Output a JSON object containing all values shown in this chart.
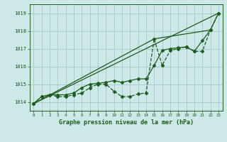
{
  "title": "Graphe pression niveau de la mer (hPa)",
  "background_color": "#cce8e8",
  "grid_color": "#aacccc",
  "line_color": "#1a5c1a",
  "xlim": [
    -0.5,
    23.5
  ],
  "ylim": [
    1013.5,
    1019.5
  ],
  "yticks": [
    1014,
    1015,
    1016,
    1017,
    1018,
    1019
  ],
  "xticks": [
    0,
    1,
    2,
    3,
    4,
    5,
    6,
    7,
    8,
    9,
    10,
    11,
    12,
    13,
    14,
    15,
    16,
    17,
    18,
    19,
    20,
    21,
    22,
    23
  ],
  "series": [
    {
      "x": [
        0,
        1,
        2,
        3,
        4,
        5,
        6,
        7,
        8,
        9,
        10,
        11,
        12,
        13,
        14,
        15,
        16,
        17,
        18,
        19,
        20,
        21,
        22,
        23
      ],
      "y": [
        1013.9,
        1014.3,
        1014.4,
        1014.3,
        1014.3,
        1014.4,
        1014.5,
        1014.8,
        1015.0,
        1015.0,
        1014.6,
        1014.3,
        1014.3,
        1014.45,
        1014.5,
        1017.55,
        1016.05,
        1016.9,
        1017.0,
        1017.1,
        1016.85,
        1016.85,
        1018.05,
        1019.0
      ],
      "marker": "D",
      "markersize": 2.5,
      "linewidth": 0.9,
      "linestyle": "--"
    },
    {
      "x": [
        0,
        1,
        2,
        3,
        4,
        5,
        6,
        7,
        8,
        9,
        10,
        11,
        12,
        13,
        14,
        15,
        16,
        17,
        18,
        19,
        20,
        21,
        22,
        23
      ],
      "y": [
        1013.9,
        1014.3,
        1014.4,
        1014.4,
        1014.4,
        1014.5,
        1014.8,
        1015.0,
        1015.05,
        1015.1,
        1015.2,
        1015.1,
        1015.2,
        1015.3,
        1015.3,
        1016.05,
        1016.9,
        1017.0,
        1017.05,
        1017.1,
        1016.85,
        1017.45,
        1018.05,
        1019.0
      ],
      "marker": "P",
      "markersize": 3,
      "linewidth": 0.9,
      "linestyle": "-"
    },
    {
      "x": [
        0,
        23
      ],
      "y": [
        1013.9,
        1019.0
      ],
      "marker": null,
      "markersize": 0,
      "linewidth": 0.9,
      "linestyle": "-"
    },
    {
      "x": [
        0,
        15,
        22
      ],
      "y": [
        1013.9,
        1017.55,
        1018.05
      ],
      "marker": null,
      "markersize": 0,
      "linewidth": 0.9,
      "linestyle": "-"
    }
  ]
}
